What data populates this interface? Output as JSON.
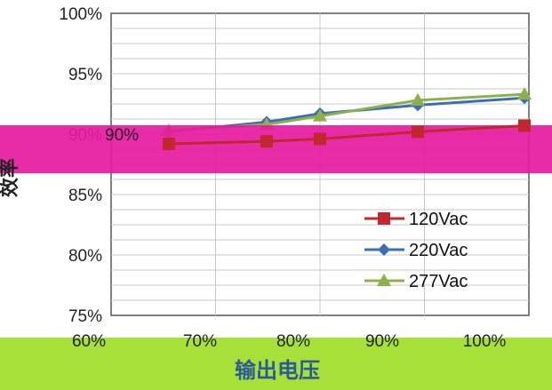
{
  "chart_data": {
    "type": "line",
    "x": [
      "60%",
      "70%",
      "80%",
      "90%",
      "100%"
    ],
    "xlabel": "输出电压",
    "ylabel": "效率",
    "ytick_labels": [
      "75%",
      "80%",
      "85%",
      "90%",
      "95%",
      "100%"
    ],
    "ylim": [
      75,
      100
    ],
    "grid": true,
    "legend_position": "bottom-right",
    "series": [
      {
        "name": "120Vac",
        "values": [
          89.2,
          89.4,
          89.6,
          90.2,
          90.7
        ],
        "color": "#c0282e",
        "marker": "square"
      },
      {
        "name": "220Vac",
        "values": [
          90.2,
          91.0,
          91.7,
          92.4,
          93.0
        ],
        "color": "#3a6fb7",
        "marker": "diamond"
      },
      {
        "name": "277Vac",
        "values": [
          90.3,
          90.8,
          91.5,
          92.8,
          93.3
        ],
        "color": "#8db04a",
        "marker": "triangle"
      }
    ],
    "annotations": [
      "90%"
    ]
  },
  "colors": {
    "highlight_band": "#e61aa0",
    "xaxis_band": "#a6e038",
    "axis": "#333333",
    "grid": "#c8c8c8"
  }
}
